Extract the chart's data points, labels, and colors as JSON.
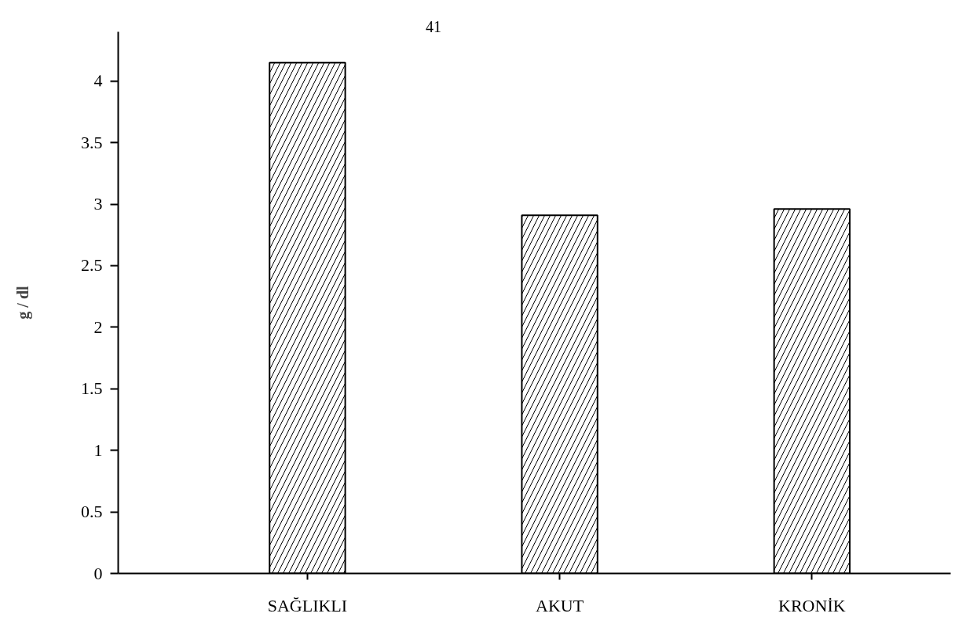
{
  "chart_data": {
    "type": "bar",
    "ylabel": "g / dl",
    "categories": [
      "SAĞLIKLI",
      "AKUT",
      "KRONİK"
    ],
    "values": [
      4.15,
      2.91,
      2.96
    ],
    "color": "#000000",
    "ylim": [
      0,
      4.4
    ],
    "yticks": [
      0,
      0.5,
      1,
      1.5,
      2,
      2.5,
      3,
      3.5,
      4
    ],
    "grid": false,
    "annotations": [
      "41"
    ]
  }
}
